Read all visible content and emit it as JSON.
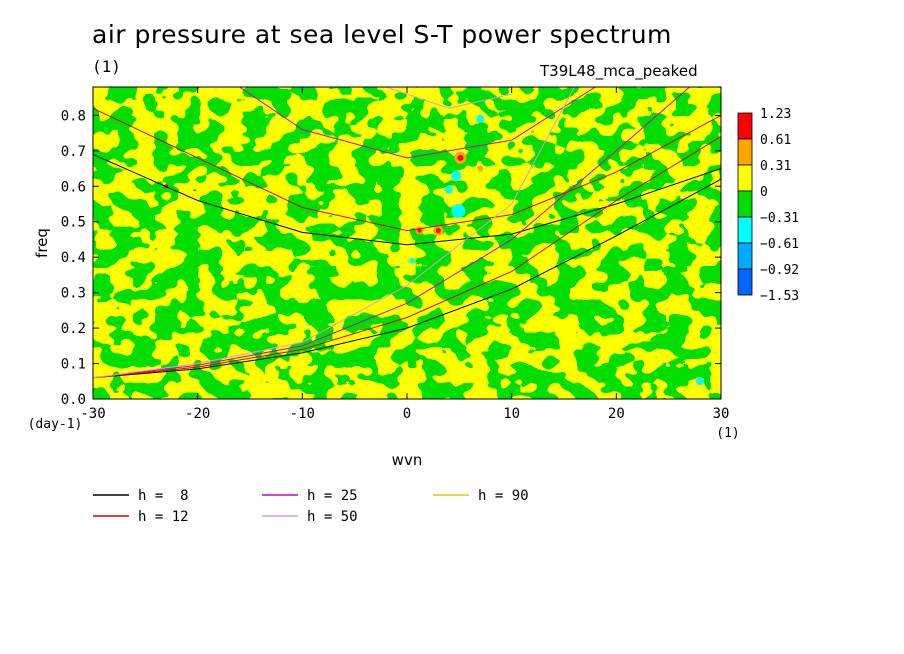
{
  "title": "air pressure at sea level S-T power spectrum",
  "title_unit": "(1)",
  "run_label": "T39L48_mca_peaked",
  "chart_data": {
    "type": "heatmap",
    "xlabel": "wvn",
    "ylabel": "freq",
    "x_unit": "(1)",
    "y_unit": "(day-1)",
    "xlim": [
      -30,
      30
    ],
    "ylim": [
      0,
      0.88
    ],
    "x_ticks": [
      -30,
      -20,
      -10,
      0,
      10,
      20,
      30
    ],
    "y_ticks": [
      0.0,
      0.1,
      0.2,
      0.3,
      0.4,
      0.5,
      0.6,
      0.7,
      0.8
    ],
    "colorbar": {
      "labels": [
        "1.23",
        "0.61",
        "0.31",
        "0",
        "-0.31",
        "-0.61",
        "-0.92",
        "-1.53"
      ],
      "colors": [
        "#ff0000",
        "#ffa500",
        "#ffff00",
        "#00dd00",
        "#00ffff",
        "#00aaff",
        "#0066ff"
      ]
    },
    "dispersion_curves": [
      {
        "name": "h =  8",
        "color": "#000000"
      },
      {
        "name": "h = 12",
        "color": "#dd0000"
      },
      {
        "name": "h = 25",
        "color": "#cc00cc"
      },
      {
        "name": "h = 50",
        "color": "#dd99dd"
      },
      {
        "name": "h = 90",
        "color": "#e6c200"
      }
    ],
    "grid": false
  }
}
